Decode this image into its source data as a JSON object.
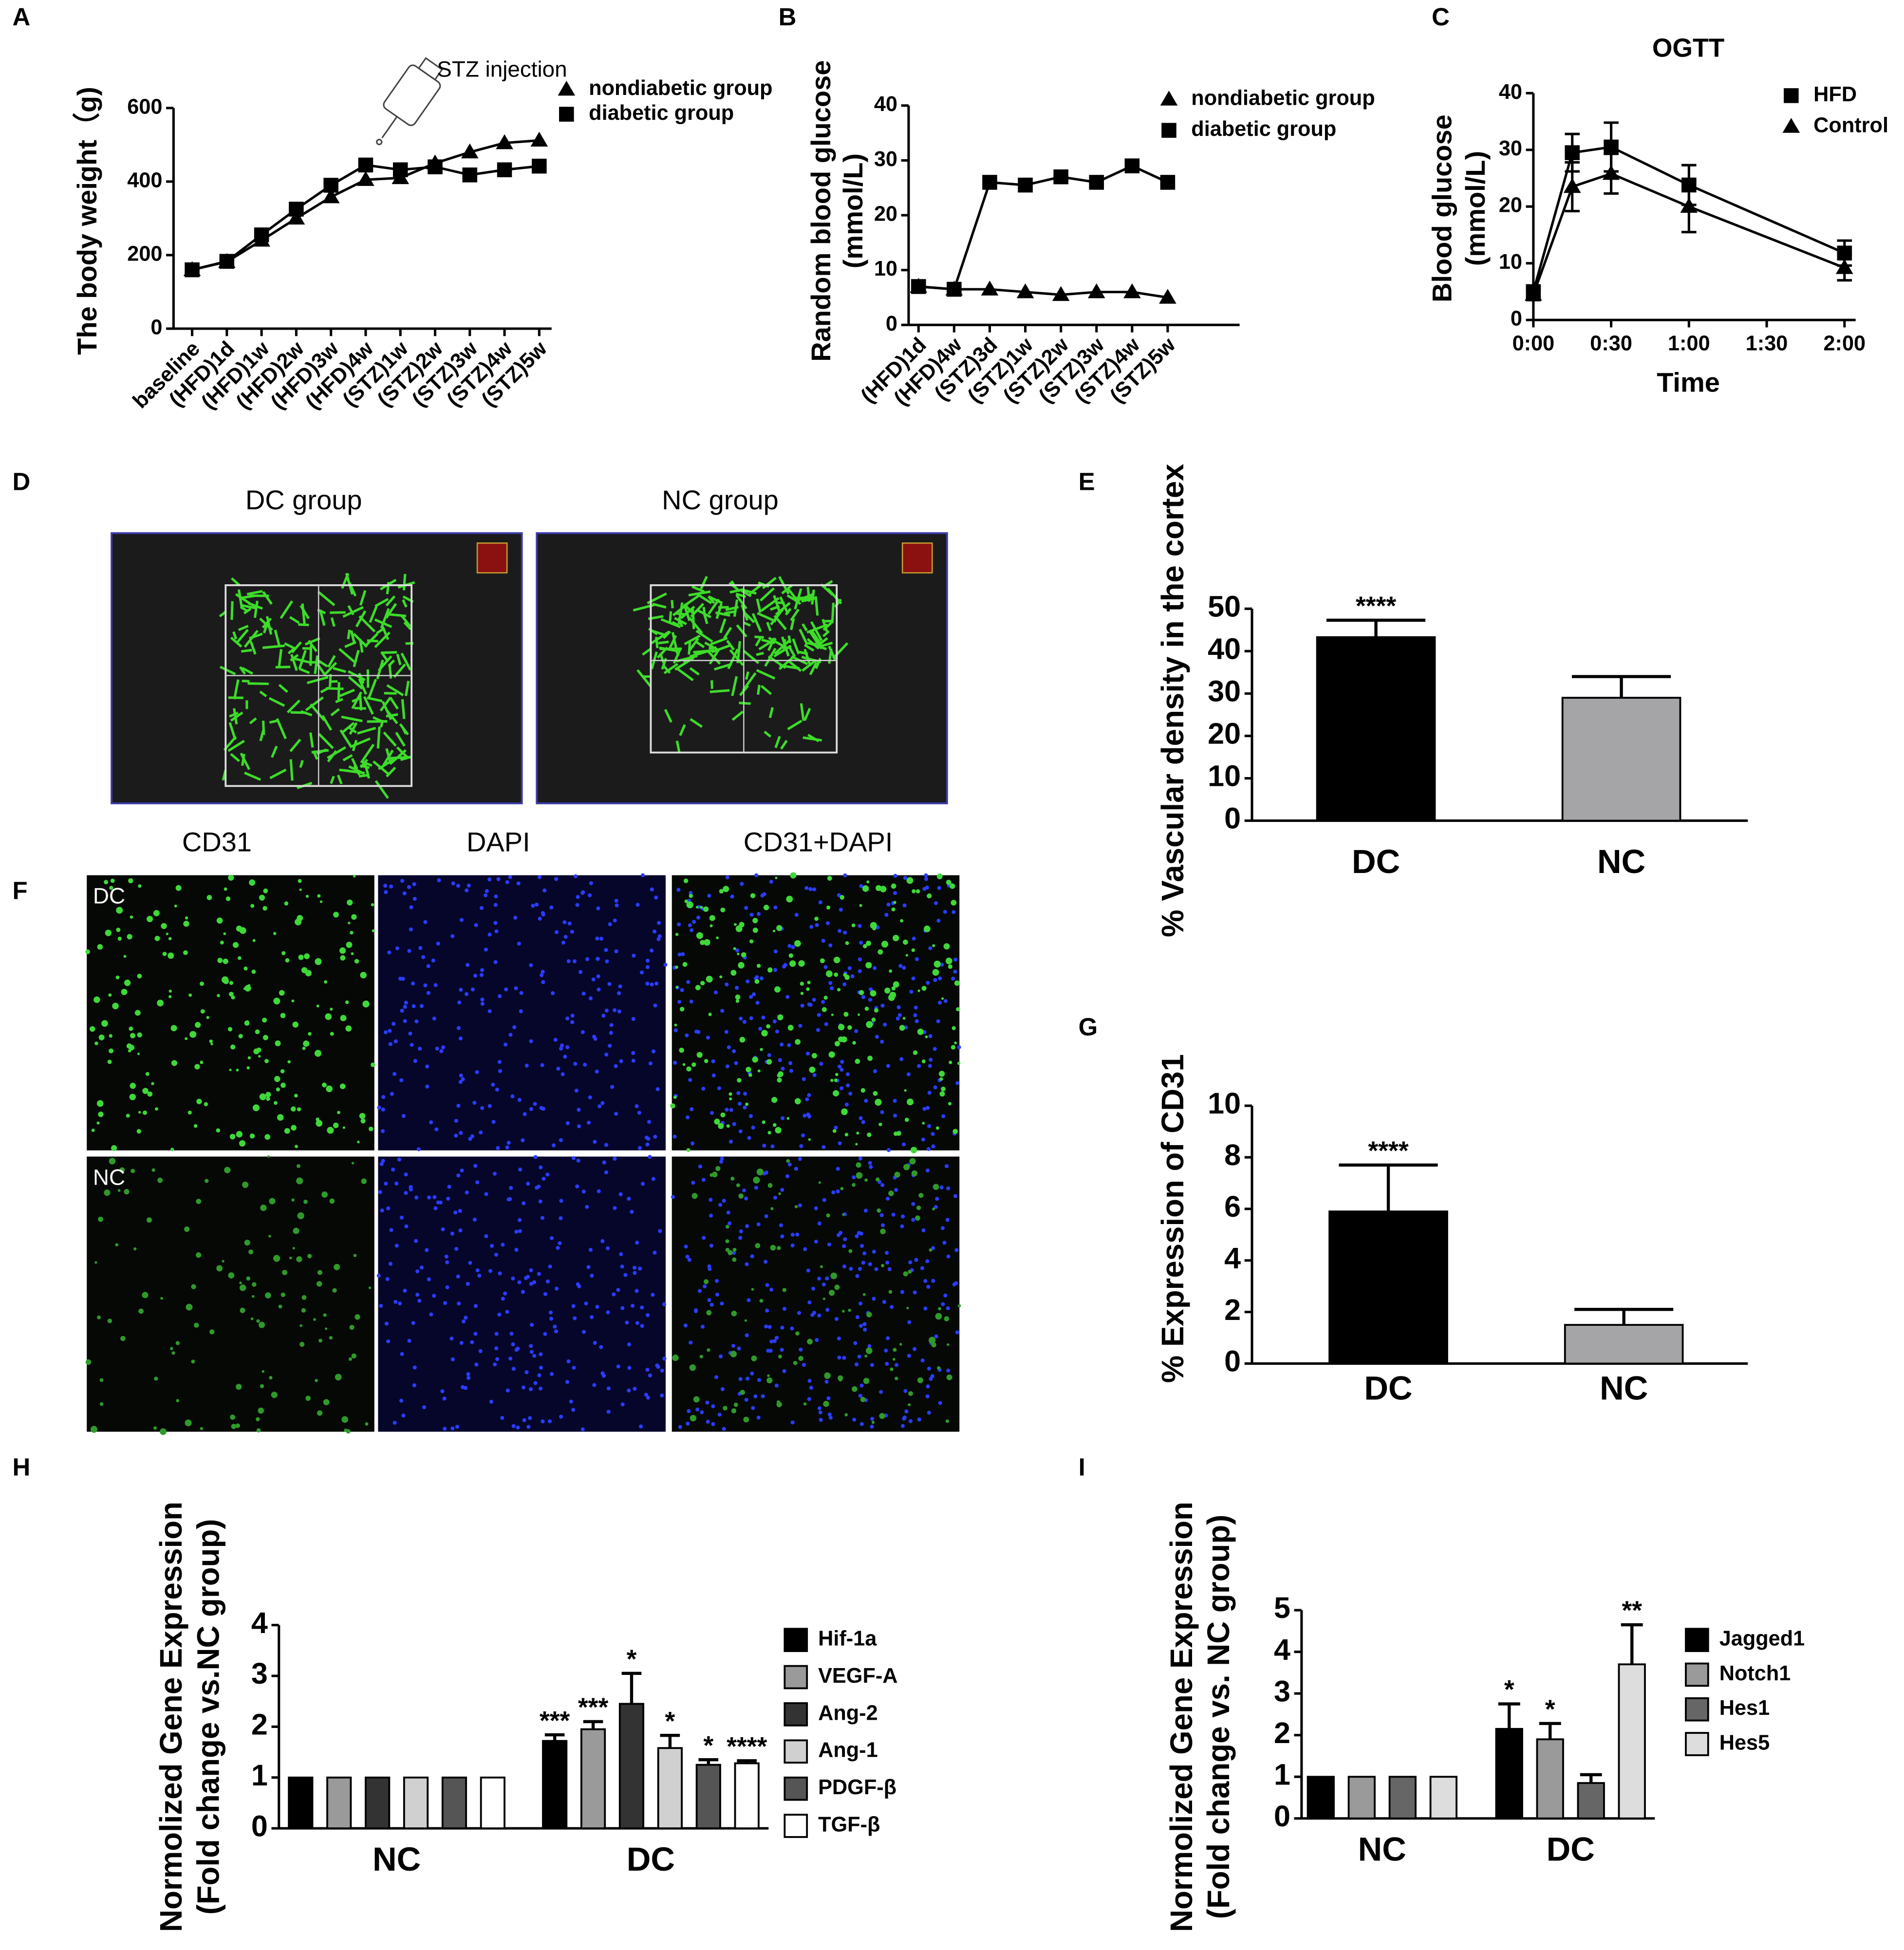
{
  "panel_labels": [
    "A",
    "B",
    "C",
    "D",
    "E",
    "F",
    "G",
    "H",
    "I"
  ],
  "images": {
    "D": {
      "titles": [
        "DC group",
        "NC group"
      ]
    },
    "F": {
      "columns": [
        "CD31",
        "DAPI",
        "CD31+DAPI"
      ],
      "rows": [
        "DC",
        "NC"
      ]
    }
  },
  "chart_data": [
    {
      "type": "line",
      "ylabel": "The body weight（g)",
      "annotation": "STZ injection",
      "categories": [
        "baseline",
        "(HFD)1d",
        "(HFD)1w",
        "(HFD)2w",
        "(HFD)3w",
        "(HFD)4w",
        "(STZ)1w",
        "(STZ)2w",
        "(STZ)3w",
        "(STZ)4w",
        "(STZ)5w"
      ],
      "ylim": [
        0,
        600
      ],
      "yticks": [
        0,
        200,
        400,
        600
      ],
      "series": [
        {
          "name": "nondiabetic group",
          "color": "#000000",
          "marker": "triangle",
          "values": [
            160,
            182,
            240,
            300,
            358,
            405,
            410,
            450,
            480,
            505,
            512
          ]
        },
        {
          "name": "diabetic group",
          "color": "#000000",
          "marker": "square",
          "values": [
            160,
            183,
            255,
            325,
            390,
            445,
            432,
            440,
            418,
            432,
            442
          ]
        }
      ]
    },
    {
      "type": "line",
      "ylabel": [
        "Random blood glucose",
        "(mmol/L)"
      ],
      "categories": [
        "(HFD)1d",
        "(HFD)4w",
        "(STZ)3d",
        "(STZ)1w",
        "(STZ)2w",
        "(STZ)3w",
        "(STZ)4w",
        "(STZ)5w"
      ],
      "ylim": [
        0,
        40
      ],
      "yticks": [
        0,
        10,
        20,
        30,
        40
      ],
      "series": [
        {
          "name": "nondiabetic group",
          "color": "#000000",
          "marker": "triangle",
          "values": [
            7,
            6.5,
            6.5,
            6,
            5.5,
            6,
            6,
            5
          ]
        },
        {
          "name": "diabetic group",
          "color": "#000000",
          "marker": "square",
          "values": [
            7,
            6.5,
            26,
            25.5,
            27,
            26,
            29,
            26
          ]
        }
      ]
    },
    {
      "type": "line",
      "title": "OGTT",
      "xlabel": "Time",
      "ylabel": [
        "Blood glucose",
        "(mmol/L)"
      ],
      "x": [
        0,
        15,
        30,
        60,
        120
      ],
      "xlim": [
        0,
        120
      ],
      "xticks": [
        {
          "value": 0,
          "label": "0:00"
        },
        {
          "value": 30,
          "label": "0:30"
        },
        {
          "value": 60,
          "label": "1:00"
        },
        {
          "value": 90,
          "label": "1:30"
        },
        {
          "value": 120,
          "label": "2:00"
        }
      ],
      "ylim": [
        0,
        40
      ],
      "yticks": [
        0,
        10,
        20,
        30,
        40
      ],
      "series": [
        {
          "name": "HFD",
          "color": "#000000",
          "marker": "square",
          "values": [
            5,
            29.5,
            30.5,
            23.8,
            11.8
          ],
          "errors": [
            1,
            3.3,
            4.3,
            3.5,
            2.2
          ]
        },
        {
          "name": "Control",
          "color": "#000000",
          "marker": "triangle",
          "values": [
            4.5,
            23.5,
            25.8,
            20,
            9.2
          ],
          "errors": [
            1,
            4.3,
            3.5,
            4.5,
            2.2
          ]
        }
      ]
    },
    {
      "type": "bar",
      "ylabel": "% Vascular density in the cortex",
      "categories": [
        "DC",
        "NC"
      ],
      "values": [
        43.3,
        29
      ],
      "errors": [
        4,
        5
      ],
      "annotations": [
        "****",
        null
      ],
      "colors": [
        "#000000",
        "#a5a5a7"
      ],
      "ylim": [
        0,
        50
      ],
      "yticks": [
        0,
        10,
        20,
        30,
        40,
        50
      ]
    },
    {
      "type": "bar",
      "ylabel": "% Expression of CD31",
      "categories": [
        "DC",
        "NC"
      ],
      "values": [
        5.9,
        1.5
      ],
      "errors": [
        1.8,
        0.6
      ],
      "annotations": [
        "****",
        null
      ],
      "colors": [
        "#000000",
        "#a5a5a7"
      ],
      "ylim": [
        0,
        10
      ],
      "yticks": [
        0,
        2,
        4,
        6,
        8,
        10
      ]
    },
    {
      "type": "bar",
      "ylabel": [
        "Normolized Gene Expression",
        "(Fold change vs.NC group)"
      ],
      "categories": [
        "NC",
        "DC"
      ],
      "ylim": [
        0,
        4
      ],
      "yticks": [
        0,
        1,
        2,
        3,
        4
      ],
      "series": [
        {
          "name": "Hif-1a",
          "color": "#000000",
          "values": [
            1,
            1.72
          ],
          "errors": [
            null,
            0.12
          ],
          "annotations": [
            null,
            "***"
          ]
        },
        {
          "name": "VEGF-A",
          "color": "#9a9a9a",
          "values": [
            1,
            1.95
          ],
          "errors": [
            null,
            0.15
          ],
          "annotations": [
            null,
            "***"
          ]
        },
        {
          "name": "Ang-2",
          "color": "#333333",
          "values": [
            1,
            2.45
          ],
          "errors": [
            null,
            0.6
          ],
          "annotations": [
            null,
            "*"
          ]
        },
        {
          "name": "Ang-1",
          "color": "#d0d0d0",
          "values": [
            1,
            1.58
          ],
          "errors": [
            null,
            0.25
          ],
          "annotations": [
            null,
            "*"
          ]
        },
        {
          "name": "PDGF-β",
          "color": "#555555",
          "values": [
            1,
            1.25
          ],
          "errors": [
            null,
            0.1
          ],
          "annotations": [
            null,
            "*"
          ]
        },
        {
          "name": "TGF-β",
          "color": "#ffffff",
          "values": [
            1,
            1.28
          ],
          "errors": [
            null,
            0.05
          ],
          "annotations": [
            null,
            "****"
          ]
        }
      ]
    },
    {
      "type": "bar",
      "ylabel": [
        "Normolized Gene Expression",
        "(Fold change vs. NC group)"
      ],
      "categories": [
        "NC",
        "DC"
      ],
      "ylim": [
        0,
        5
      ],
      "yticks": [
        0,
        1,
        2,
        3,
        4,
        5
      ],
      "series": [
        {
          "name": "Jagged1",
          "color": "#000000",
          "values": [
            1,
            2.15
          ],
          "errors": [
            null,
            0.6
          ],
          "annotations": [
            null,
            "*"
          ]
        },
        {
          "name": "Notch1",
          "color": "#9a9a9a",
          "values": [
            1,
            1.9
          ],
          "errors": [
            null,
            0.38
          ],
          "annotations": [
            null,
            "*"
          ]
        },
        {
          "name": "Hes1",
          "color": "#666666",
          "values": [
            1,
            0.85
          ],
          "errors": [
            null,
            0.2
          ],
          "annotations": [
            null,
            null
          ]
        },
        {
          "name": "Hes5",
          "color": "#dddddd",
          "values": [
            1,
            3.7
          ],
          "errors": [
            null,
            0.95
          ],
          "annotations": [
            null,
            "**"
          ]
        }
      ]
    }
  ]
}
